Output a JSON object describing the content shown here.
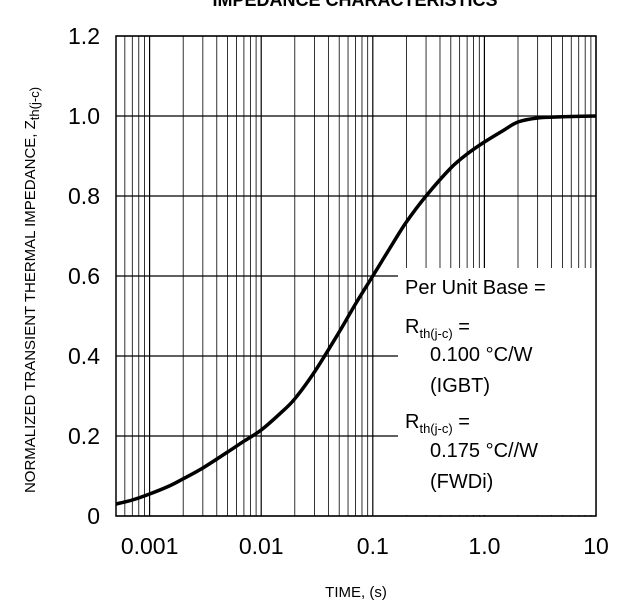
{
  "chart_data": {
    "type": "line",
    "title": "IMPEDANCE CHARACTERISTICS",
    "xlabel": "TIME, (s)",
    "ylabel_main": "NORMALIZED TRANSIENT THERMAL IMPEDANCE, Z",
    "ylabel_sub": "th(j-c)",
    "x_scale": "log",
    "xlim": [
      0.0005,
      10
    ],
    "ylim": [
      0,
      1.2
    ],
    "grid": true,
    "x_ticks": [
      {
        "value": 0.001,
        "label": "0.001"
      },
      {
        "value": 0.01,
        "label": "0.01"
      },
      {
        "value": 0.1,
        "label": "0.1"
      },
      {
        "value": 1,
        "label": "1.0"
      },
      {
        "value": 10,
        "label": "10"
      }
    ],
    "y_ticks": [
      {
        "value": 0,
        "label": "0"
      },
      {
        "value": 0.2,
        "label": "0.2"
      },
      {
        "value": 0.4,
        "label": "0.4"
      },
      {
        "value": 0.6,
        "label": "0.6"
      },
      {
        "value": 0.8,
        "label": "0.8"
      },
      {
        "value": 1.0,
        "label": "1.0"
      },
      {
        "value": 1.2,
        "label": "1.2"
      }
    ],
    "series": [
      {
        "color": "#000000",
        "x": [
          0.0005,
          0.0007,
          0.001,
          0.0015,
          0.002,
          0.003,
          0.005,
          0.007,
          0.01,
          0.015,
          0.02,
          0.03,
          0.05,
          0.07,
          0.1,
          0.15,
          0.2,
          0.3,
          0.5,
          0.7,
          1,
          1.5,
          2,
          3,
          5,
          10
        ],
        "y": [
          0.03,
          0.04,
          0.055,
          0.075,
          0.093,
          0.12,
          0.16,
          0.187,
          0.215,
          0.258,
          0.293,
          0.36,
          0.46,
          0.53,
          0.6,
          0.68,
          0.735,
          0.8,
          0.87,
          0.905,
          0.935,
          0.965,
          0.985,
          0.995,
          0.998,
          1.0
        ]
      }
    ],
    "annotation": {
      "line1": "Per Unit Base =",
      "r_label": "R",
      "r_sub": "th(j-c)",
      "r_eq": " =",
      "igbt_value": "0.100 °C/W",
      "igbt_label": "(IGBT)",
      "fwdi_value": "0.175 °C//W",
      "fwdi_label": "(FWDi)"
    }
  }
}
